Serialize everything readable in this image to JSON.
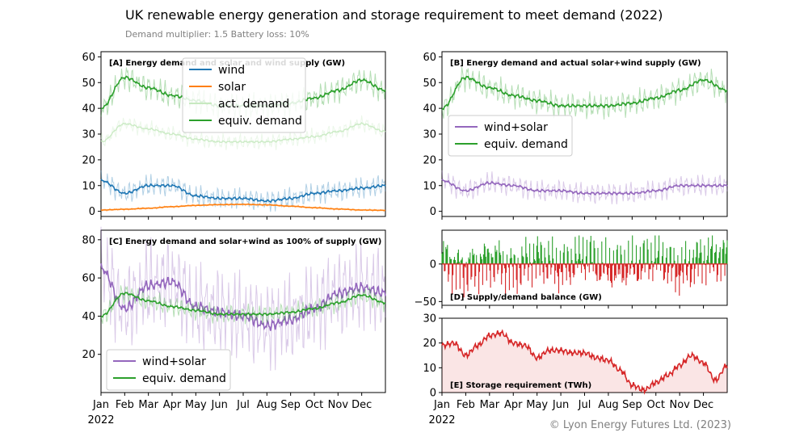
{
  "title": "UK renewable energy generation and storage requirement to meet demand (2022)",
  "subtitle": "Demand multiplier: 1.5 Battery loss: 10%",
  "copyright": "© Lyon Energy Futures Ltd. (2023)",
  "x_ticks": [
    "Jan",
    "Feb",
    "Mar",
    "Apr",
    "May",
    "Jun",
    "Jul",
    "Aug",
    "Sep",
    "Oct",
    "Nov",
    "Dec"
  ],
  "x_year": "2022",
  "colors": {
    "wind": "#1f77b4",
    "solar": "#ff7f0e",
    "demand": "#2ca02c",
    "windsolar": "#9467bd",
    "balance_pos": "#2ca02c",
    "balance_neg": "#d62728",
    "storage": "#d62728"
  },
  "chart_data": [
    {
      "id": "A",
      "type": "line",
      "title": "[A] Energy demand and solar and wind supply (GW)",
      "ylim": [
        -2,
        62
      ],
      "yticks": [
        0,
        10,
        20,
        30,
        40,
        50,
        60
      ],
      "legend": [
        "wind",
        "solar",
        "act. demand",
        "equiv. demand"
      ],
      "legend_placement": "upper-center",
      "months": [
        0,
        1,
        2,
        3,
        4,
        5,
        6,
        7,
        8,
        9,
        10,
        11,
        12
      ],
      "series": [
        {
          "name": "wind",
          "values": [
            12,
            7,
            10,
            10,
            6,
            5,
            5,
            4,
            5,
            7,
            8,
            9,
            10
          ]
        },
        {
          "name": "solar",
          "values": [
            0.5,
            0.8,
            1.2,
            1.8,
            2.3,
            2.6,
            2.7,
            2.5,
            2.0,
            1.4,
            0.9,
            0.5,
            0.4
          ]
        },
        {
          "name": "act. demand",
          "values": [
            27,
            34,
            32,
            30,
            28,
            27,
            27,
            27,
            28,
            29,
            31,
            34,
            31
          ]
        },
        {
          "name": "equiv. demand",
          "values": [
            40,
            52,
            48,
            45,
            43,
            41,
            41,
            41,
            42,
            44,
            47,
            51,
            47
          ]
        }
      ]
    },
    {
      "id": "B",
      "type": "line",
      "title": "[B] Energy demand and actual solar+wind supply (GW)",
      "ylim": [
        -2,
        62
      ],
      "yticks": [
        0,
        10,
        20,
        30,
        40,
        50,
        60
      ],
      "legend": [
        "wind+solar",
        "equiv. demand"
      ],
      "legend_placement": "center-left",
      "months": [
        0,
        1,
        2,
        3,
        4,
        5,
        6,
        7,
        8,
        9,
        10,
        11,
        12
      ],
      "series": [
        {
          "name": "wind+solar",
          "values": [
            12,
            8,
            11,
            10,
            8,
            8,
            7,
            7,
            7,
            8,
            10,
            10,
            10
          ]
        },
        {
          "name": "equiv. demand",
          "values": [
            40,
            52,
            48,
            45,
            43,
            41,
            41,
            41,
            42,
            44,
            47,
            51,
            47
          ]
        }
      ]
    },
    {
      "id": "C",
      "type": "line",
      "title": "[C] Energy demand and solar+wind as 100% of supply (GW)",
      "ylim": [
        0,
        85
      ],
      "yticks": [
        20,
        40,
        60,
        80
      ],
      "legend": [
        "wind+solar",
        "equiv. demand"
      ],
      "legend_placement": "lower-left",
      "months": [
        0,
        1,
        2,
        3,
        4,
        5,
        6,
        7,
        8,
        9,
        10,
        11,
        12
      ],
      "series": [
        {
          "name": "wind+solar",
          "values": [
            65,
            44,
            56,
            58,
            45,
            42,
            40,
            35,
            38,
            44,
            52,
            55,
            52
          ]
        },
        {
          "name": "equiv. demand",
          "values": [
            40,
            52,
            48,
            45,
            43,
            41,
            41,
            41,
            42,
            44,
            47,
            51,
            47
          ]
        }
      ]
    },
    {
      "id": "D",
      "type": "line",
      "title": "[D] Supply/demand balance (GW)",
      "ylim": [
        -55,
        45
      ],
      "yticks": [
        -50,
        0
      ],
      "months": [
        0,
        1,
        2,
        3,
        4,
        5,
        6,
        7,
        8,
        9,
        10,
        11,
        12
      ],
      "series": [
        {
          "name": "balance",
          "values": [
            15,
            -30,
            20,
            -25,
            30,
            -20,
            35,
            -25,
            -10,
            30,
            -35,
            30,
            35
          ]
        }
      ]
    },
    {
      "id": "E",
      "type": "area",
      "title": "[E] Storage requirement (TWh)",
      "ylim": [
        0,
        30
      ],
      "yticks": [
        0,
        10,
        20,
        30
      ],
      "months": [
        0,
        0.5,
        1,
        1.5,
        2,
        2.5,
        3,
        3.5,
        4,
        4.5,
        5,
        5.5,
        6,
        6.5,
        7,
        7.5,
        8,
        8.5,
        9,
        9.5,
        10,
        10.5,
        11,
        11.5,
        12
      ],
      "series": [
        {
          "name": "storage",
          "values": [
            19,
            20,
            15,
            19,
            23,
            24,
            20,
            19,
            14,
            17,
            17,
            16,
            16,
            14,
            13,
            9,
            3,
            1,
            4,
            7,
            11,
            15,
            12,
            5,
            11
          ]
        }
      ]
    }
  ]
}
